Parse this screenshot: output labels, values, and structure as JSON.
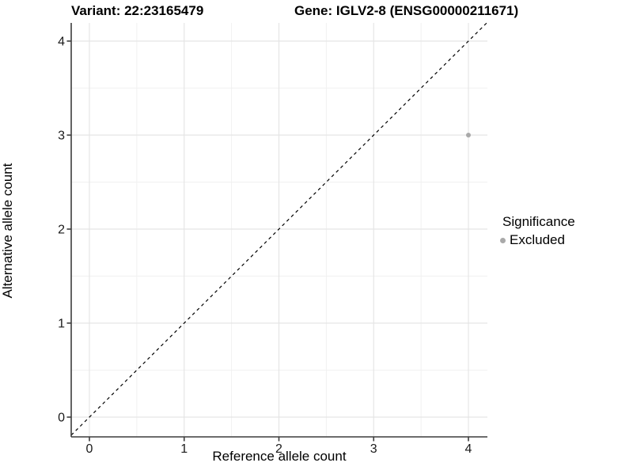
{
  "chart_data": {
    "type": "scatter",
    "title_left": "Variant: 22:23165479",
    "title_right": "Gene: IGLV2-8 (ENSG00000211671)",
    "xlabel": "Reference allele count",
    "ylabel": "Alternative allele count",
    "x_ticks": [
      0,
      1,
      2,
      3,
      4
    ],
    "y_ticks": [
      0,
      1,
      2,
      3,
      4
    ],
    "xlim": [
      -0.19,
      4.2
    ],
    "ylim": [
      -0.19,
      4.2
    ],
    "grid": {
      "major": [
        0,
        1,
        2,
        3,
        4
      ],
      "minor": [
        0.5,
        1.5,
        2.5,
        3.5
      ],
      "major_color": "#e5e5e5",
      "minor_color": "#f1f1f1"
    },
    "identity_line": {
      "equation": "y = x",
      "style": "dashed",
      "color": "#000000"
    },
    "series": [
      {
        "name": "Excluded",
        "color": "#a9a9a9",
        "points": [
          {
            "x": 4,
            "y": 3
          }
        ]
      }
    ],
    "legend": {
      "title": "Significance",
      "position": "right",
      "entries": [
        {
          "label": "Excluded",
          "color": "#a9a9a9"
        }
      ]
    },
    "axis_color": "#3c3c3c",
    "tick_label_color": "#1a1a1a"
  }
}
